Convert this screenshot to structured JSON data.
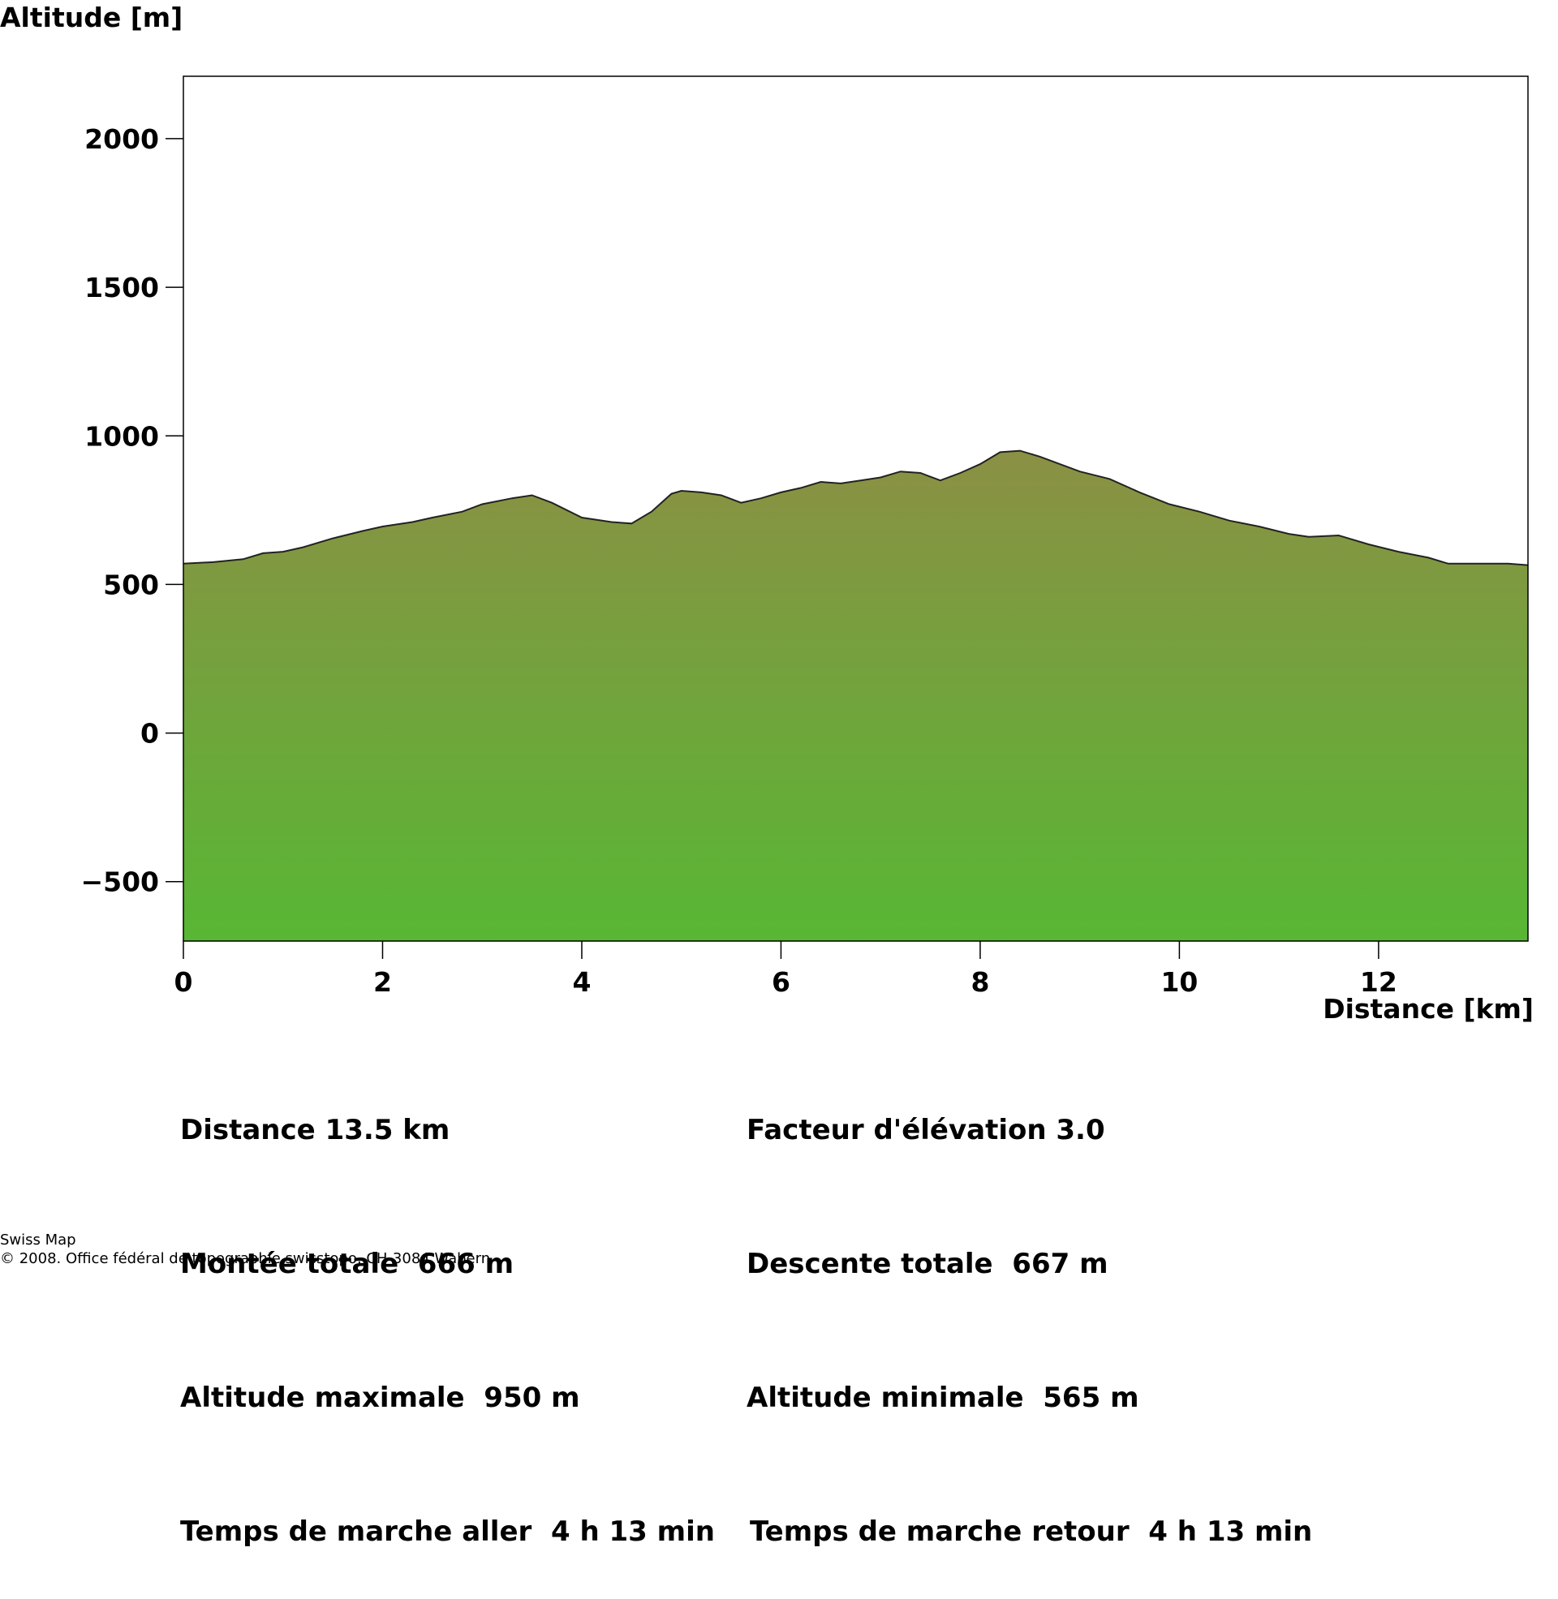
{
  "chart_data": {
    "type": "area",
    "xlabel": "Distance [km]",
    "ylabel": "Altitude [m]",
    "xlim": [
      0,
      13.5
    ],
    "ylim": [
      -700,
      2210
    ],
    "x_ticks": [
      0,
      2,
      4,
      6,
      8,
      10,
      12
    ],
    "y_ticks": [
      -500,
      0,
      500,
      1000,
      1500,
      2000
    ],
    "y_tick_labels": [
      "−500",
      "0",
      "500",
      "1000",
      "1500",
      "2000"
    ],
    "grid": false,
    "fill_color_top": "#8b9044",
    "fill_color_bottom": "#58b734",
    "line_color": "#222222",
    "x": [
      0,
      0.3,
      0.6,
      0.8,
      1.0,
      1.2,
      1.5,
      1.8,
      2.0,
      2.3,
      2.5,
      2.8,
      3.0,
      3.3,
      3.5,
      3.7,
      4.0,
      4.3,
      4.5,
      4.7,
      4.9,
      5.0,
      5.2,
      5.4,
      5.6,
      5.8,
      6.0,
      6.2,
      6.4,
      6.6,
      6.8,
      7.0,
      7.2,
      7.4,
      7.6,
      7.8,
      8.0,
      8.2,
      8.4,
      8.6,
      8.8,
      9.0,
      9.3,
      9.6,
      9.9,
      10.2,
      10.5,
      10.8,
      11.1,
      11.3,
      11.6,
      11.9,
      12.2,
      12.5,
      12.7,
      13.0,
      13.3,
      13.5
    ],
    "y": [
      570,
      575,
      585,
      605,
      610,
      625,
      655,
      680,
      695,
      710,
      725,
      745,
      770,
      790,
      800,
      775,
      725,
      710,
      705,
      745,
      805,
      815,
      810,
      800,
      775,
      790,
      810,
      825,
      845,
      840,
      850,
      860,
      880,
      875,
      850,
      875,
      905,
      945,
      950,
      930,
      905,
      880,
      855,
      810,
      770,
      745,
      715,
      695,
      670,
      660,
      665,
      635,
      610,
      590,
      570,
      570,
      570,
      565
    ]
  },
  "labels": {
    "y_axis_title": "Altitude [m]",
    "x_axis_title": "Distance [km]"
  },
  "stats": {
    "distance": "Distance 13.5 km",
    "montee": "Montée totale  666 m",
    "alt_max": "Altitude maximale  950 m",
    "temps_aller": "Temps de marche aller  4 h 13 min",
    "facteur": "Facteur d'élévation 3.0",
    "descente": "Descente totale  667 m",
    "alt_min": "Altitude minimale  565 m",
    "temps_retour": "Temps de marche retour  4 h 13 min"
  },
  "footer": {
    "line1": "Swiss Map",
    "line2": "© 2008. Office fédéral de topographie swisstopo, CH-3084 Wabern"
  }
}
